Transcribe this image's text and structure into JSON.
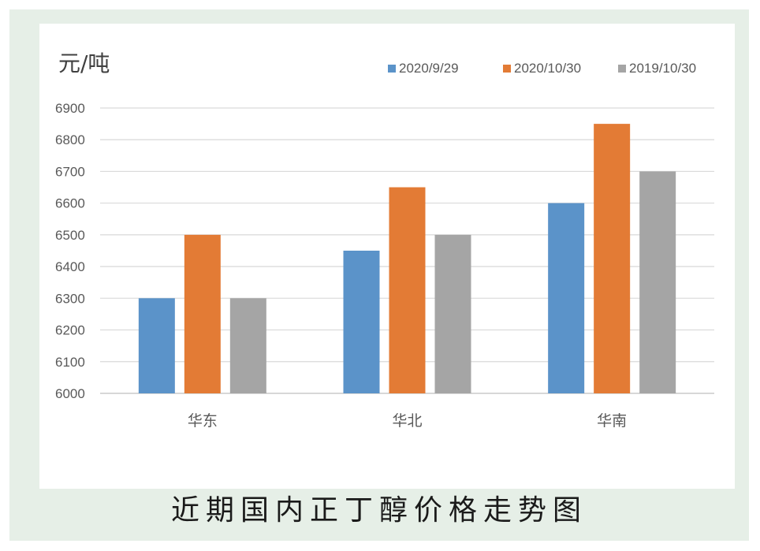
{
  "caption": "近期国内正丁醇价格走势图",
  "chart_data": {
    "type": "bar",
    "ylabel": "元/吨",
    "categories": [
      "华东",
      "华北",
      "华南"
    ],
    "series": [
      {
        "name": "2020/9/29",
        "color": "#5b93c9",
        "values": [
          6300,
          6450,
          6600
        ]
      },
      {
        "name": "2020/10/30",
        "color": "#e37b35",
        "values": [
          6500,
          6650,
          6850
        ]
      },
      {
        "name": "2019/10/30",
        "color": "#a5a5a5",
        "values": [
          6300,
          6500,
          6700
        ]
      }
    ],
    "ylim": [
      6000,
      6900
    ],
    "yticks": [
      "6000",
      "6100",
      "6200",
      "6300",
      "6400",
      "6500",
      "6600",
      "6700",
      "6800",
      "6900"
    ],
    "grid": true,
    "legend": "top-right"
  }
}
